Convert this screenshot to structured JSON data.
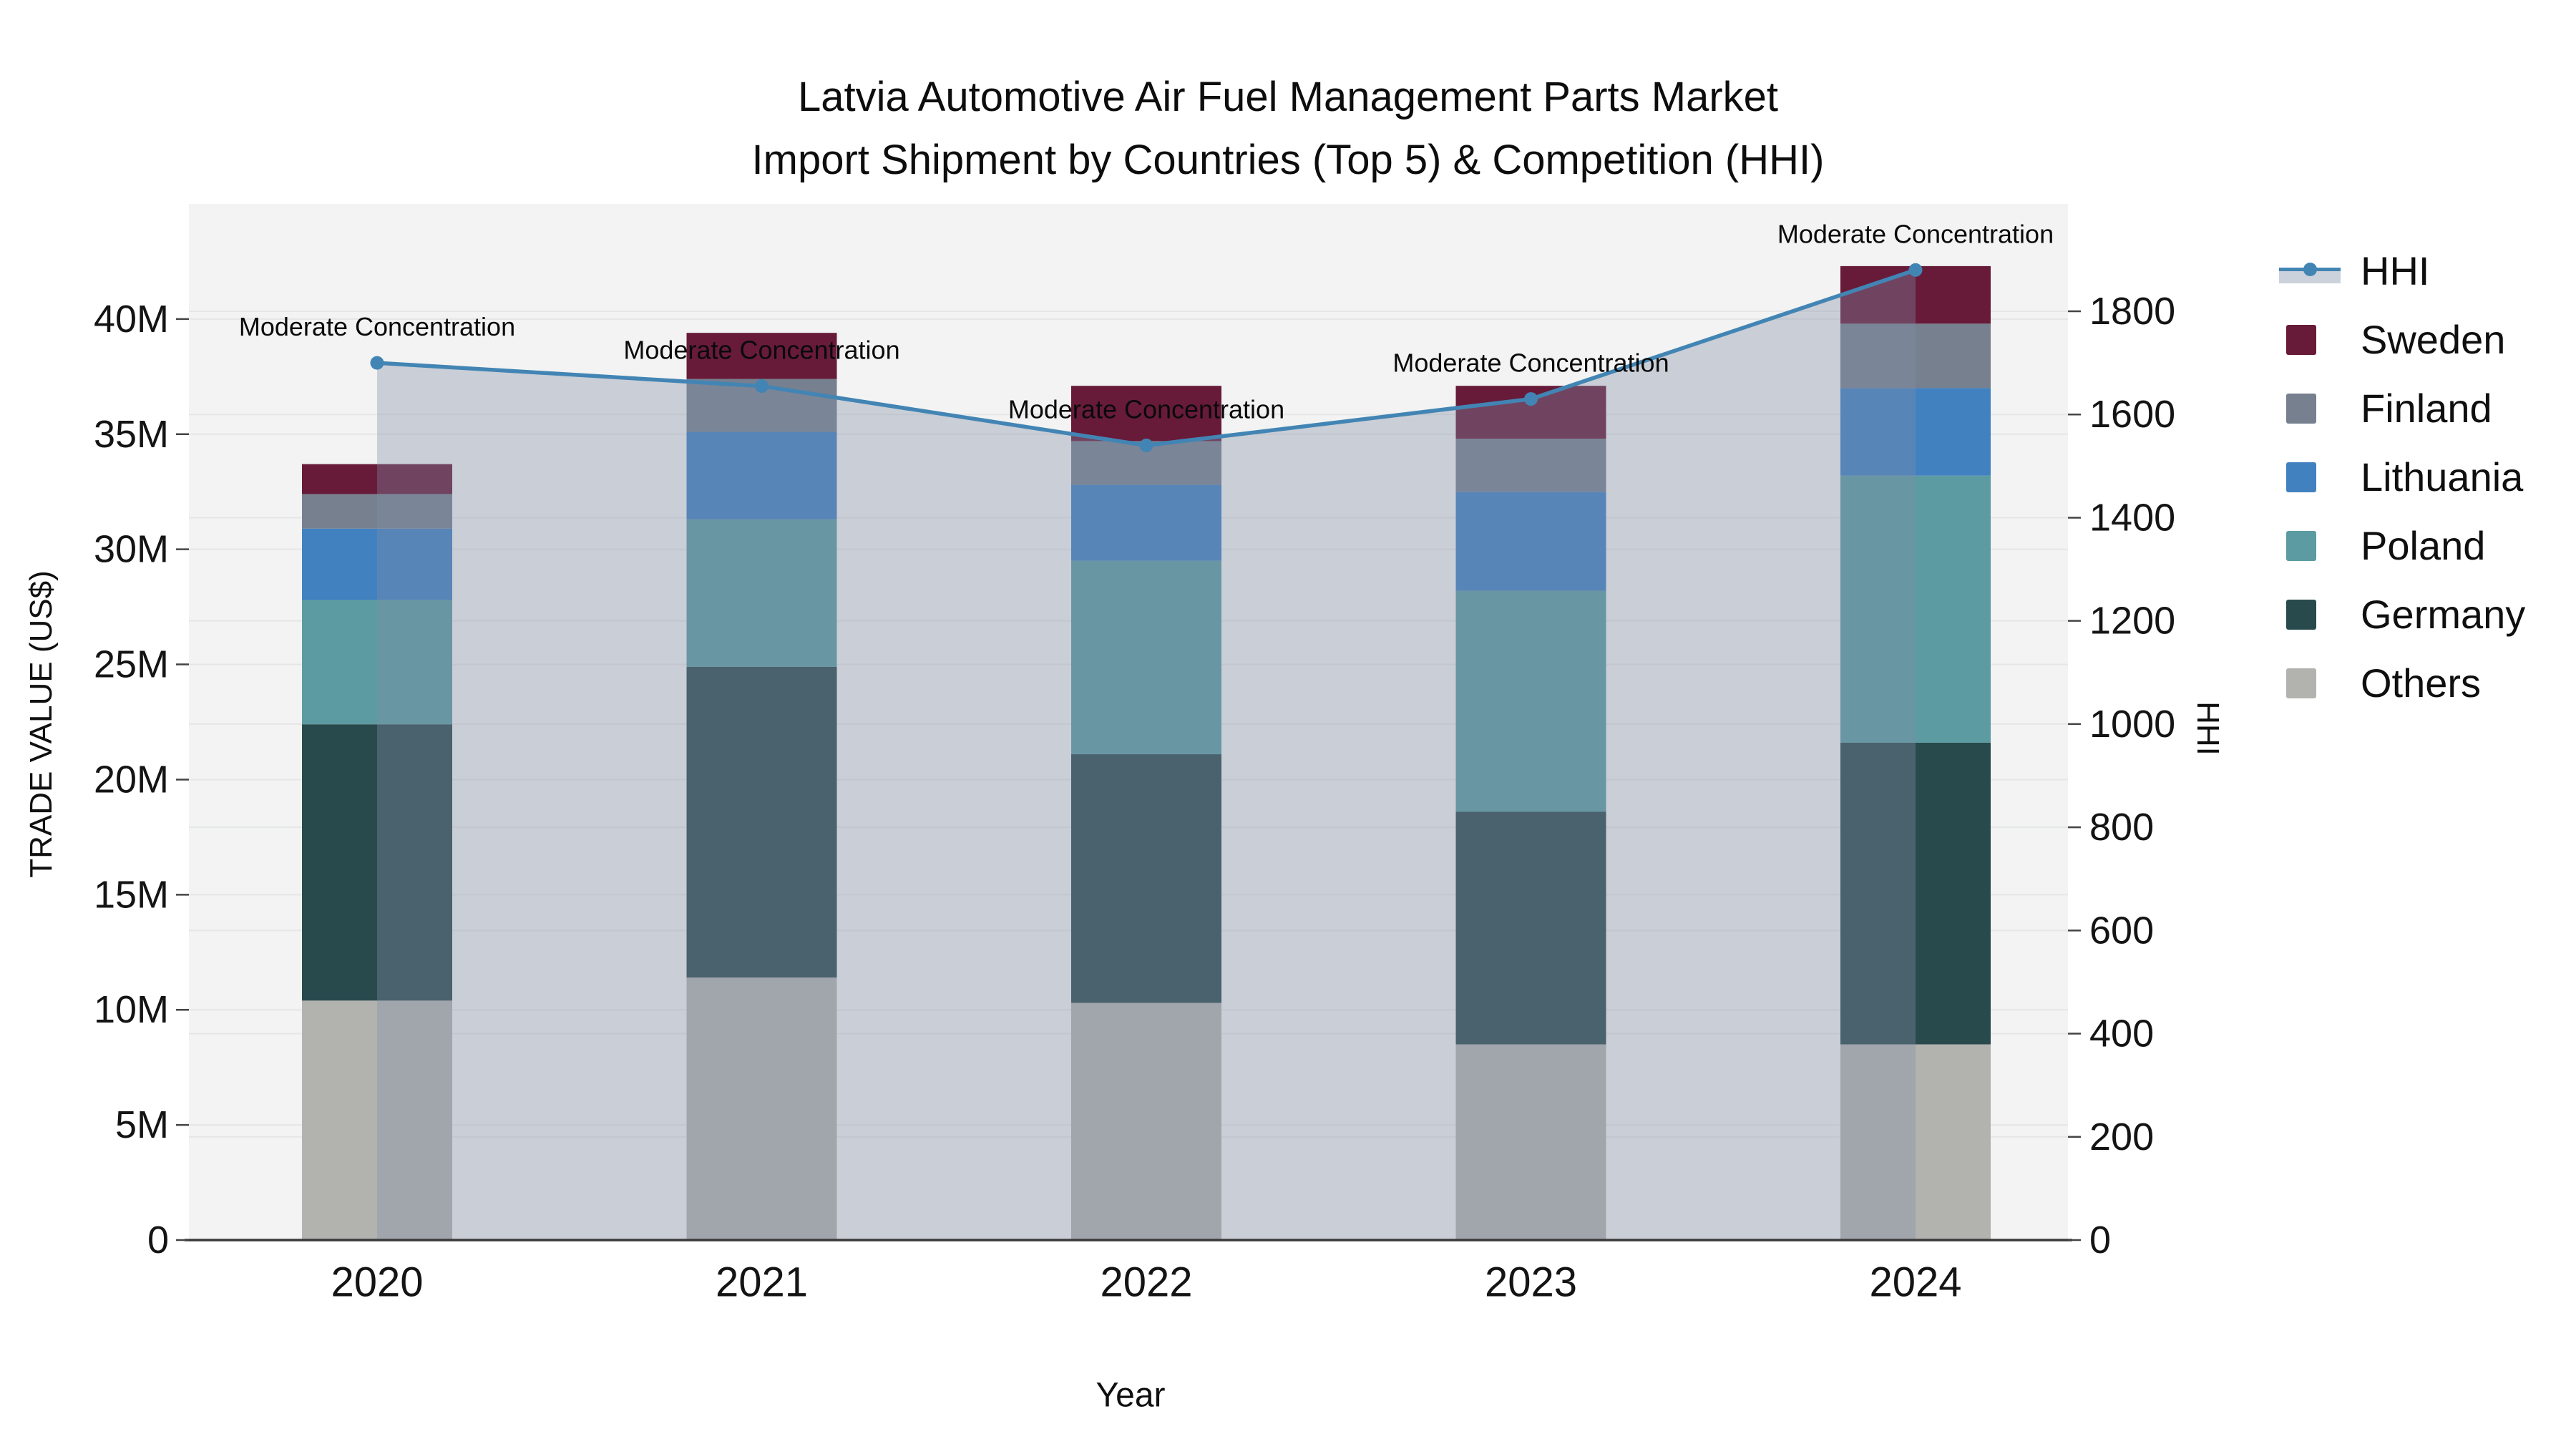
{
  "title": {
    "line1": "Latvia Automotive Air Fuel Management Parts Market",
    "line2": "Import Shipment by Countries (Top 5) & Competition (HHI)"
  },
  "chart_data": {
    "type": "stacked-bar+line",
    "categories": [
      "2020",
      "2021",
      "2022",
      "2023",
      "2024"
    ],
    "value_unit": "US$ millions",
    "series": [
      {
        "name": "Others",
        "color": "#b2b3af",
        "values": [
          10.4,
          11.4,
          10.3,
          8.5,
          8.5
        ]
      },
      {
        "name": "Germany",
        "color": "#294a4d",
        "values": [
          12.0,
          13.5,
          10.8,
          10.1,
          13.1
        ]
      },
      {
        "name": "Poland",
        "color": "#5c9ba1",
        "values": [
          5.4,
          6.4,
          8.4,
          9.6,
          11.6
        ]
      },
      {
        "name": "Lithuania",
        "color": "#4181c0",
        "values": [
          3.1,
          3.8,
          3.3,
          4.3,
          3.8
        ]
      },
      {
        "name": "Finland",
        "color": "#76808f",
        "values": [
          1.5,
          2.3,
          1.9,
          2.3,
          2.8
        ]
      },
      {
        "name": "Sweden",
        "color": "#671b39",
        "values": [
          1.3,
          2.0,
          2.4,
          2.3,
          2.5
        ]
      }
    ],
    "line_series": {
      "name": "HHI",
      "color": "#4285b4",
      "area_fill_color": "rgba(130,142,165,0.36)",
      "legend_band_color": "#ccd2db",
      "values": [
        1700,
        1655,
        1540,
        1630,
        1880
      ],
      "axis": "y2"
    },
    "annotations": {
      "text": "Moderate Concentration"
    },
    "xlabel": "Year",
    "y1": {
      "label": "TRADE VALUE (US$)",
      "tick_labels": [
        "0",
        "5M",
        "10M",
        "15M",
        "20M",
        "25M",
        "30M",
        "35M",
        "40M"
      ],
      "tick_values": [
        0,
        5,
        10,
        15,
        20,
        25,
        30,
        35,
        40
      ],
      "max": 45
    },
    "y2": {
      "label": "HHI",
      "tick_labels": [
        "0",
        "200",
        "400",
        "600",
        "800",
        "1000",
        "1200",
        "1400",
        "1600",
        "1800"
      ],
      "tick_values": [
        0,
        200,
        400,
        600,
        800,
        1000,
        1200,
        1400,
        1600,
        1800
      ],
      "max": 2008
    },
    "legend_order": [
      "HHI",
      "Sweden",
      "Finland",
      "Lithuania",
      "Poland",
      "Germany",
      "Others"
    ],
    "grid": true,
    "plot_background": "#f2f3f2",
    "gridline_color": "#e5e7e7",
    "axis_line_color": "#3a3a3a",
    "tick_text_color": "#141414",
    "annotation_color": "#0a0a0a"
  }
}
